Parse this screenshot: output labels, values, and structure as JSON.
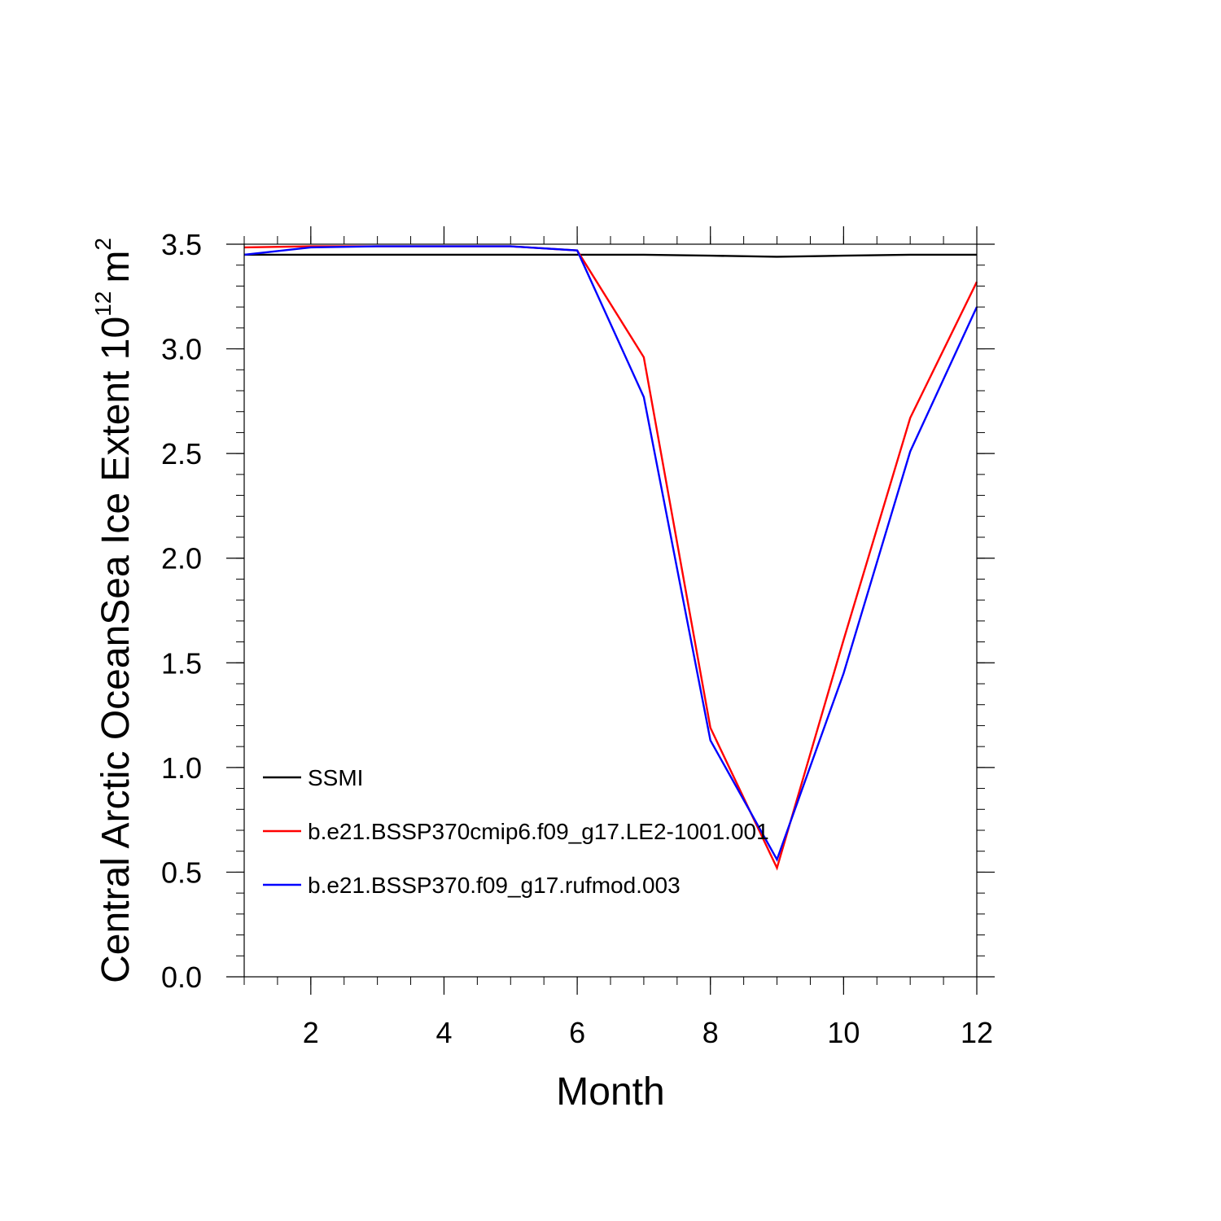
{
  "chart_data": {
    "type": "line",
    "title": "",
    "xlabel": "Month",
    "ylabel": {
      "text": "Central Arctic OceanSea Ice Extent 10",
      "exponent": "12",
      "unit": "m",
      "unit_exponent": "2"
    },
    "xlim": [
      1,
      12
    ],
    "ylim": [
      0,
      3.5
    ],
    "x_ticks": [
      2,
      4,
      6,
      8,
      10,
      12
    ],
    "y_ticks": [
      "0.0",
      "0.5",
      "1.0",
      "1.5",
      "2.0",
      "2.5",
      "3.0",
      "3.5"
    ],
    "grid": false,
    "legend_position": "lower-left",
    "x": [
      1,
      2,
      3,
      4,
      5,
      6,
      7,
      8,
      9,
      10,
      11,
      12
    ],
    "series": [
      {
        "name": "SSMI",
        "color": "#000000",
        "values": [
          3.45,
          3.45,
          3.45,
          3.45,
          3.45,
          3.45,
          3.45,
          3.445,
          3.44,
          3.445,
          3.45,
          3.45
        ]
      },
      {
        "name": "b.e21.BSSP370cmip6.f09_g17.LE2-1001.001",
        "color": "#ff0000",
        "values": [
          3.485,
          3.49,
          3.49,
          3.49,
          3.49,
          3.47,
          2.96,
          1.19,
          0.52,
          1.61,
          2.67,
          3.32
        ]
      },
      {
        "name": "b.e21.BSSP370.f09_g17.rufmod.003",
        "color": "#0000ff",
        "values": [
          3.45,
          3.485,
          3.49,
          3.49,
          3.49,
          3.47,
          2.77,
          1.13,
          0.56,
          1.45,
          2.51,
          3.2
        ]
      }
    ]
  }
}
